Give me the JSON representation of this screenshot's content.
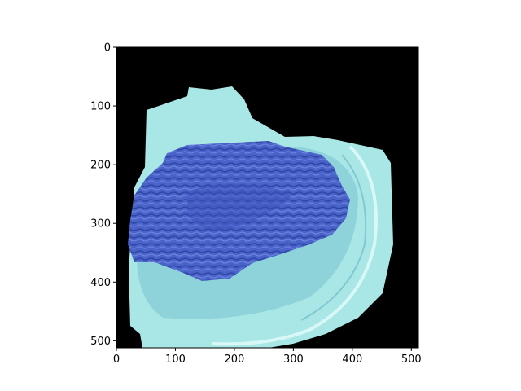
{
  "chart_data": {
    "type": "heatmap",
    "image": {
      "description_semantic": "masked-photo-of-ground-meat-on-plate",
      "colors": {
        "background": "#000000",
        "plate": "#a9e6e6",
        "plate_shadow": "#7fc9d2",
        "plate_rim": "#d8f8f8",
        "meat": "#4a63c9",
        "meat_dark": "#2f46a6",
        "meat_light": "#6f86e0"
      }
    },
    "x_ticks": [
      {
        "value": 0,
        "label": "0"
      },
      {
        "value": 100,
        "label": "100"
      },
      {
        "value": 200,
        "label": "200"
      },
      {
        "value": 300,
        "label": "300"
      },
      {
        "value": 400,
        "label": "400"
      },
      {
        "value": 500,
        "label": "500"
      }
    ],
    "y_ticks": [
      {
        "value": 0,
        "label": "0"
      },
      {
        "value": 100,
        "label": "100"
      },
      {
        "value": 200,
        "label": "200"
      },
      {
        "value": 300,
        "label": "300"
      },
      {
        "value": 400,
        "label": "400"
      },
      {
        "value": 500,
        "label": "500"
      }
    ],
    "xlim": [
      0,
      512
    ],
    "ylim": [
      512,
      0
    ],
    "grid": false,
    "legend": "none"
  }
}
